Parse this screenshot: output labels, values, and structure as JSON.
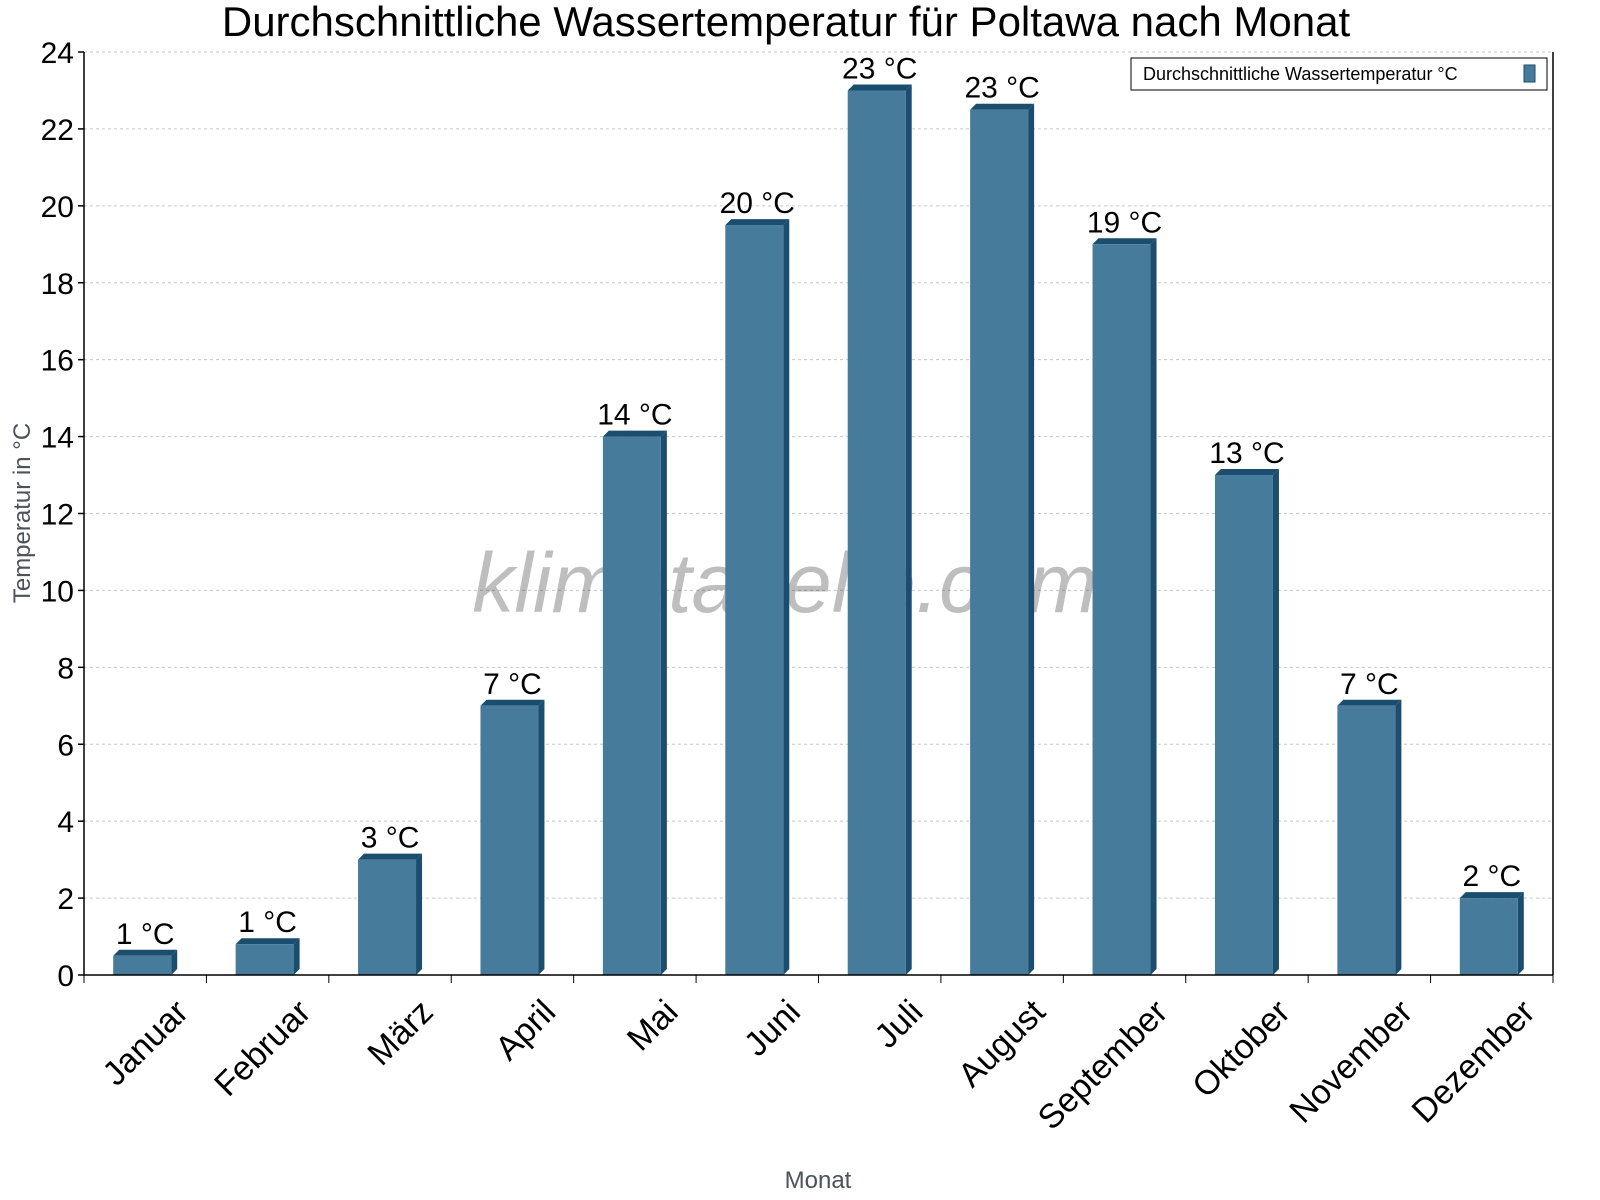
{
  "chart_data": {
    "type": "bar",
    "title": "Durchschnittliche Wassertemperatur für Poltawa nach Monat",
    "xlabel": "Monat",
    "ylabel": "Temperatur in °C",
    "ylim": [
      0,
      24
    ],
    "yticks": [
      0,
      2,
      4,
      6,
      8,
      10,
      12,
      14,
      16,
      18,
      20,
      22,
      24
    ],
    "grid": true,
    "legend_position": "top-right",
    "categories": [
      "Januar",
      "Februar",
      "März",
      "April",
      "Mai",
      "Juni",
      "Juli",
      "August",
      "September",
      "Oktober",
      "November",
      "Dezember"
    ],
    "series": [
      {
        "name": "Durchschnittliche Wassertemperatur °C",
        "color": "#467b9c",
        "values": [
          0.5,
          0.8,
          3.0,
          7.0,
          14.0,
          19.5,
          23.0,
          22.5,
          19.0,
          13.0,
          7.0,
          2.0
        ],
        "labels": [
          "1 °C",
          "1 °C",
          "3 °C",
          "7 °C",
          "14 °C",
          "20 °C",
          "23 °C",
          "23 °C",
          "19 °C",
          "13 °C",
          "7 °C",
          "2 °C"
        ]
      }
    ],
    "watermark": "klimatabelle.com"
  },
  "colors": {
    "bar_front": "#467b9c",
    "bar_side": "#1a4d6e",
    "grid": "#c8c8c8",
    "axis": "#000000"
  }
}
